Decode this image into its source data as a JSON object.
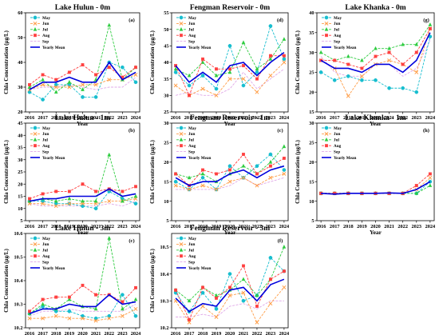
{
  "figure": {
    "x_label": "Year",
    "y_label": "Chla Concentration (μg/L)"
  },
  "legend_entries": [
    {
      "key": "may",
      "label": "May",
      "color": "#17becf",
      "dash": "3,1.5",
      "marker": "circle"
    },
    {
      "key": "jun",
      "label": "Jun",
      "color": "#ff9f4a",
      "dash": "3,1.5",
      "marker": "x"
    },
    {
      "key": "jul",
      "label": "Jul",
      "color": "#2ecc40",
      "dash": "3,1.5",
      "marker": "triangle"
    },
    {
      "key": "aug",
      "label": "Aug",
      "color": "#ff4040",
      "dash": "3,1.5",
      "marker": "square"
    },
    {
      "key": "sep",
      "label": "Sep",
      "color": "#e0a8e8",
      "dash": "3,1.5",
      "marker": "none"
    },
    {
      "key": "mean",
      "label": "Yearly Mean",
      "color": "#0000dd",
      "dash": "",
      "marker": "none"
    }
  ],
  "chart_data": [
    {
      "id": "a",
      "label": "(a)",
      "title": "Lake Hulun - 0m",
      "type": "line",
      "x": [
        2016,
        2017,
        2018,
        2019,
        2020,
        2021,
        2022,
        2023,
        2024
      ],
      "ylim": [
        20,
        60
      ],
      "yticks": [
        20,
        30,
        40,
        50,
        60
      ],
      "series": {
        "may": [
          28,
          25,
          31,
          31,
          26,
          26,
          40,
          38,
          32
        ],
        "jun": [
          29,
          31,
          30,
          30,
          31,
          31,
          33,
          33,
          35
        ],
        "jul": [
          30,
          33,
          28,
          32,
          29,
          33,
          55,
          33,
          38
        ],
        "aug": [
          31,
          35,
          33,
          36,
          39,
          35,
          38,
          34,
          38
        ],
        "sep": [
          29,
          30,
          30,
          31,
          30,
          29,
          30,
          30,
          34
        ],
        "mean": [
          29,
          32,
          32,
          34,
          32,
          32,
          40,
          33,
          36
        ]
      }
    },
    {
      "id": "d",
      "label": "(d)",
      "title": "Fengman Reservoir - 0m",
      "type": "line",
      "x": [
        2016,
        2017,
        2018,
        2019,
        2020,
        2021,
        2022,
        2023,
        2024
      ],
      "ylim": [
        25,
        55
      ],
      "yticks": [
        25,
        30,
        35,
        40,
        45,
        50,
        55
      ],
      "series": {
        "may": [
          37,
          33,
          36,
          32,
          45,
          33,
          37,
          51,
          41
        ],
        "jun": [
          33,
          30,
          32,
          30,
          35,
          35,
          31,
          36,
          40
        ],
        "jul": [
          38,
          36,
          40,
          36,
          37,
          46,
          38,
          41,
          47
        ],
        "aug": [
          39,
          30,
          41,
          38,
          38,
          39,
          35,
          42,
          42
        ],
        "sep": [
          30,
          31,
          30,
          30,
          32,
          37,
          32,
          35,
          38
        ],
        "mean": [
          39,
          34,
          37,
          34,
          39,
          40,
          36,
          40,
          43
        ]
      }
    },
    {
      "id": "g",
      "label": "(g)",
      "title": "Lake Khanka - 0m",
      "type": "line",
      "x": [
        2016,
        2017,
        2018,
        2019,
        2020,
        2021,
        2022,
        2023,
        2024
      ],
      "ylim": [
        15,
        40
      ],
      "yticks": [
        15,
        20,
        25,
        30,
        35,
        40
      ],
      "series": {
        "may": [
          25,
          23,
          24,
          23,
          23,
          21,
          21,
          20,
          34
        ],
        "jun": [
          28,
          26,
          19,
          24,
          27,
          28,
          27,
          25,
          36
        ],
        "jul": [
          30,
          28,
          29,
          28,
          31,
          31,
          32,
          32,
          37
        ],
        "aug": [
          28,
          28,
          27,
          26,
          29,
          30,
          27,
          30,
          36
        ],
        "sep": [
          29,
          25,
          24,
          24,
          27,
          27,
          24,
          26,
          33
        ],
        "mean": [
          28,
          26,
          26,
          25,
          27,
          27,
          25,
          28,
          35
        ]
      }
    },
    {
      "id": "b",
      "label": "(b)",
      "title": "Lake Hulun - 1m",
      "type": "line",
      "x": [
        2016,
        2017,
        2018,
        2019,
        2020,
        2021,
        2022,
        2023,
        2024
      ],
      "ylim": [
        5,
        45
      ],
      "yticks": [
        5,
        10,
        15,
        20,
        25,
        30,
        35,
        40,
        45
      ],
      "series": {
        "may": [
          13,
          13,
          12,
          12,
          11,
          10,
          17,
          14,
          12
        ],
        "jun": [
          12,
          12,
          11,
          12,
          12,
          12,
          13,
          13,
          14
        ],
        "jul": [
          13,
          14,
          13,
          14,
          13,
          13,
          32,
          13,
          15
        ],
        "aug": [
          14,
          16,
          17,
          17,
          20,
          17,
          18,
          17,
          19
        ],
        "sep": [
          12,
          11,
          11,
          11,
          11,
          11,
          12,
          11,
          13
        ],
        "mean": [
          13,
          14,
          14,
          15,
          15,
          15,
          18,
          15,
          16
        ]
      }
    },
    {
      "id": "c",
      "label": "(c)",
      "title": "Fengman Reservoir - 1m",
      "type": "line",
      "x": [
        2016,
        2017,
        2018,
        2019,
        2020,
        2021,
        2022,
        2023,
        2024
      ],
      "ylim": [
        5,
        30
      ],
      "yticks": [
        5,
        10,
        15,
        20,
        25,
        30
      ],
      "series": {
        "may": [
          15,
          13,
          16,
          13,
          19,
          16,
          19,
          22,
          18
        ],
        "jun": [
          14,
          13,
          14,
          13,
          15,
          16,
          14,
          16,
          17
        ],
        "jul": [
          17,
          16,
          17,
          15,
          17,
          19,
          17,
          20,
          24
        ],
        "aug": [
          17,
          14,
          18,
          17,
          18,
          22,
          17,
          19,
          21
        ],
        "sep": [
          13,
          13,
          13,
          13,
          14,
          16,
          14,
          15,
          16
        ],
        "mean": [
          16,
          14,
          15,
          15,
          17,
          18,
          16,
          18,
          19
        ]
      }
    },
    {
      "id": "h",
      "label": "(h)",
      "title": "Lake Khanka - 1m",
      "type": "line",
      "x": [
        2016,
        2017,
        2018,
        2019,
        2020,
        2021,
        2022,
        2023,
        2024
      ],
      "ylim": [
        5,
        30
      ],
      "yticks": [
        5,
        10,
        15,
        20,
        25,
        30
      ],
      "series": {
        "may": [
          12,
          12,
          12,
          12,
          12,
          12,
          12,
          12,
          15
        ],
        "jun": [
          12,
          12,
          12,
          12,
          12,
          12,
          12,
          13,
          16
        ],
        "jul": [
          12,
          12,
          12,
          12,
          12,
          12,
          12,
          12,
          14
        ],
        "aug": [
          12,
          12,
          12,
          12,
          12,
          12,
          12,
          14,
          17
        ],
        "sep": [
          12,
          12,
          12,
          12,
          12,
          12,
          12,
          13,
          15
        ],
        "mean": [
          12,
          11.8,
          12,
          12,
          12,
          12.1,
          12,
          13,
          15
        ]
      }
    },
    {
      "id": "c2",
      "label": "(c)",
      "title": "Lake Hulun - 3m",
      "type": "line",
      "x": [
        2016,
        2017,
        2018,
        2019,
        2020,
        2021,
        2022,
        2023,
        2024
      ],
      "ylim": [
        10.2,
        10.6
      ],
      "yticks": [
        10.2,
        10.3,
        10.4,
        10.5,
        10.6
      ],
      "series": {
        "may": [
          10.26,
          10.29,
          10.27,
          10.27,
          10.25,
          10.24,
          10.25,
          10.34,
          10.25
        ],
        "jun": [
          10.24,
          10.24,
          10.25,
          10.24,
          10.24,
          10.23,
          10.24,
          10.25,
          10.28
        ],
        "jul": [
          10.26,
          10.3,
          10.28,
          10.32,
          10.29,
          10.28,
          10.58,
          10.28,
          10.32
        ],
        "aug": [
          10.27,
          10.32,
          10.33,
          10.33,
          10.38,
          10.34,
          10.34,
          10.31,
          10.37
        ],
        "sep": [
          10.25,
          10.27,
          10.27,
          10.28,
          10.27,
          10.27,
          10.27,
          10.27,
          10.3
        ],
        "mean": [
          10.26,
          10.28,
          10.28,
          10.3,
          10.29,
          10.29,
          10.34,
          10.3,
          10.31
        ]
      }
    },
    {
      "id": "f",
      "label": "(f)",
      "title": "Fengman Reservoir - 3m",
      "type": "line",
      "x": [
        2016,
        2017,
        2018,
        2019,
        2020,
        2021,
        2022,
        2023,
        2024
      ],
      "ylim": [
        10.2,
        10.55
      ],
      "yticks": [
        10.2,
        10.3,
        10.4,
        10.5
      ],
      "series": {
        "may": [
          10.33,
          10.26,
          10.33,
          10.27,
          10.4,
          10.3,
          10.32,
          10.46,
          10.41
        ],
        "jun": [
          10.3,
          10.22,
          10.28,
          10.24,
          10.32,
          10.33,
          10.22,
          10.29,
          10.35
        ],
        "jul": [
          10.34,
          10.3,
          10.35,
          10.32,
          10.34,
          10.38,
          10.32,
          10.38,
          10.5
        ],
        "aug": [
          10.34,
          10.23,
          10.35,
          10.31,
          10.35,
          10.43,
          10.28,
          10.38,
          10.41
        ],
        "sep": [
          10.24,
          10.24,
          10.25,
          10.24,
          10.28,
          10.29,
          10.27,
          10.3,
          10.3
        ],
        "mean": [
          10.31,
          10.26,
          10.29,
          10.28,
          10.34,
          10.35,
          10.3,
          10.36,
          10.38
        ]
      }
    }
  ]
}
